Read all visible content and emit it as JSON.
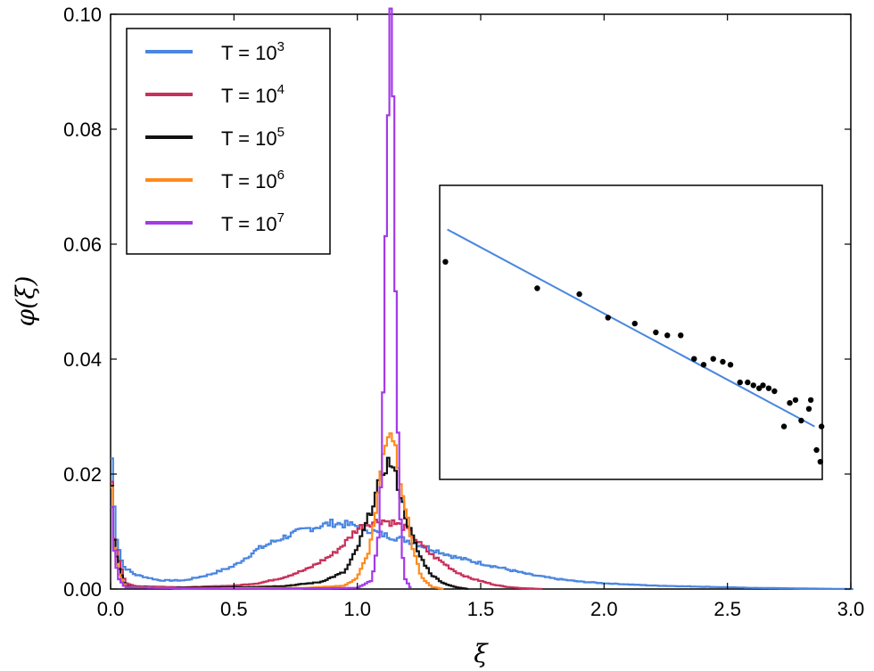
{
  "chart_data": {
    "type": "line",
    "title": "",
    "xlabel": "ξ",
    "ylabel": "φ(ξ)",
    "xlim": [
      0.0,
      3.0
    ],
    "ylim": [
      0.0,
      0.1
    ],
    "xticks": [
      "0.0",
      "0.5",
      "1.0",
      "1.5",
      "2.0",
      "2.5",
      "3.0"
    ],
    "yticks": [
      "0.00",
      "0.02",
      "0.04",
      "0.06",
      "0.08",
      "0.10"
    ],
    "legend_position": "top-left",
    "series": [
      {
        "name": "T = 10^3",
        "label_base": "T = 10",
        "label_exp": "3",
        "color": "#4a86e0",
        "points": [
          [
            0.0,
            0.027
          ],
          [
            0.02,
            0.01
          ],
          [
            0.05,
            0.004
          ],
          [
            0.1,
            0.0025
          ],
          [
            0.2,
            0.0015
          ],
          [
            0.3,
            0.0015
          ],
          [
            0.4,
            0.0025
          ],
          [
            0.5,
            0.004
          ],
          [
            0.6,
            0.007
          ],
          [
            0.7,
            0.009
          ],
          [
            0.8,
            0.0105
          ],
          [
            0.9,
            0.0115
          ],
          [
            1.0,
            0.011
          ],
          [
            1.1,
            0.0095
          ],
          [
            1.2,
            0.0085
          ],
          [
            1.3,
            0.007
          ],
          [
            1.4,
            0.0055
          ],
          [
            1.5,
            0.0045
          ],
          [
            1.6,
            0.0035
          ],
          [
            1.7,
            0.0025
          ],
          [
            1.8,
            0.0018
          ],
          [
            1.9,
            0.0013
          ],
          [
            2.0,
            0.001
          ],
          [
            2.2,
            0.0006
          ],
          [
            2.4,
            0.0004
          ],
          [
            2.6,
            0.0002
          ],
          [
            2.8,
            0.0001
          ],
          [
            3.0,
            0.0
          ]
        ]
      },
      {
        "name": "T = 10^4",
        "label_base": "T = 10",
        "label_exp": "4",
        "color": "#c9305a",
        "points": [
          [
            0.0,
            0.028
          ],
          [
            0.01,
            0.01
          ],
          [
            0.03,
            0.006
          ],
          [
            0.06,
            0.001
          ],
          [
            0.1,
            0.0005
          ],
          [
            0.3,
            0.0003
          ],
          [
            0.5,
            0.0006
          ],
          [
            0.6,
            0.001
          ],
          [
            0.7,
            0.002
          ],
          [
            0.8,
            0.0035
          ],
          [
            0.9,
            0.006
          ],
          [
            0.95,
            0.008
          ],
          [
            1.0,
            0.0105
          ],
          [
            1.05,
            0.0115
          ],
          [
            1.1,
            0.012
          ],
          [
            1.15,
            0.0115
          ],
          [
            1.2,
            0.0105
          ],
          [
            1.25,
            0.008
          ],
          [
            1.3,
            0.006
          ],
          [
            1.35,
            0.0045
          ],
          [
            1.4,
            0.003
          ],
          [
            1.45,
            0.002
          ],
          [
            1.5,
            0.0014
          ],
          [
            1.55,
            0.0008
          ],
          [
            1.6,
            0.0004
          ],
          [
            1.65,
            0.0002
          ],
          [
            1.7,
            0.0001
          ],
          [
            1.75,
            0.0
          ]
        ]
      },
      {
        "name": "T = 10^5",
        "label_base": "T = 10",
        "label_exp": "5",
        "color": "#111111",
        "points": [
          [
            0.0,
            0.028
          ],
          [
            0.01,
            0.01
          ],
          [
            0.03,
            0.004
          ],
          [
            0.06,
            0.0005
          ],
          [
            0.2,
            0.0002
          ],
          [
            0.5,
            0.0003
          ],
          [
            0.7,
            0.0005
          ],
          [
            0.85,
            0.0012
          ],
          [
            0.95,
            0.003
          ],
          [
            1.0,
            0.007
          ],
          [
            1.05,
            0.013
          ],
          [
            1.1,
            0.02
          ],
          [
            1.13,
            0.0225
          ],
          [
            1.16,
            0.019
          ],
          [
            1.2,
            0.012
          ],
          [
            1.25,
            0.006
          ],
          [
            1.3,
            0.0025
          ],
          [
            1.35,
            0.001
          ],
          [
            1.4,
            0.0003
          ],
          [
            1.45,
            0.0
          ]
        ]
      },
      {
        "name": "T = 10^6",
        "label_base": "T = 10",
        "label_exp": "6",
        "color": "#ff8a1c",
        "points": [
          [
            0.0,
            0.028
          ],
          [
            0.01,
            0.009
          ],
          [
            0.03,
            0.003
          ],
          [
            0.06,
            0.0004
          ],
          [
            0.3,
            0.0001
          ],
          [
            0.8,
            0.0002
          ],
          [
            0.95,
            0.0006
          ],
          [
            1.0,
            0.002
          ],
          [
            1.05,
            0.007
          ],
          [
            1.08,
            0.015
          ],
          [
            1.11,
            0.025
          ],
          [
            1.13,
            0.028
          ],
          [
            1.15,
            0.026
          ],
          [
            1.18,
            0.018
          ],
          [
            1.22,
            0.008
          ],
          [
            1.26,
            0.002
          ],
          [
            1.3,
            0.0004
          ],
          [
            1.35,
            0.0
          ]
        ]
      },
      {
        "name": "T = 10^7",
        "label_base": "T = 10",
        "label_exp": "7",
        "color": "#a43ae8",
        "points": [
          [
            0.0,
            0.02
          ],
          [
            0.01,
            0.008
          ],
          [
            0.03,
            0.002
          ],
          [
            0.06,
            0.0003
          ],
          [
            0.5,
            0.0
          ],
          [
            1.0,
            0.0002
          ],
          [
            1.06,
            0.0015
          ],
          [
            1.09,
            0.01
          ],
          [
            1.11,
            0.045
          ],
          [
            1.125,
            0.085
          ],
          [
            1.135,
            0.098
          ],
          [
            1.145,
            0.09
          ],
          [
            1.155,
            0.055
          ],
          [
            1.17,
            0.015
          ],
          [
            1.19,
            0.002
          ],
          [
            1.22,
            0.0
          ]
        ]
      }
    ],
    "inset": {
      "type": "scatter",
      "xlim": [
        0,
        1
      ],
      "ylim": [
        0,
        1
      ],
      "fit_line": {
        "color": "#4a86e0",
        "points": [
          [
            0.02,
            0.85
          ],
          [
            0.98,
            0.18
          ]
        ]
      },
      "points": [
        [
          0.015,
          0.74
        ],
        [
          0.255,
          0.65
        ],
        [
          0.365,
          0.63
        ],
        [
          0.44,
          0.55
        ],
        [
          0.51,
          0.53
        ],
        [
          0.565,
          0.5
        ],
        [
          0.595,
          0.49
        ],
        [
          0.63,
          0.49
        ],
        [
          0.665,
          0.41
        ],
        [
          0.69,
          0.39
        ],
        [
          0.715,
          0.41
        ],
        [
          0.74,
          0.4
        ],
        [
          0.76,
          0.39
        ],
        [
          0.785,
          0.33
        ],
        [
          0.805,
          0.33
        ],
        [
          0.82,
          0.32
        ],
        [
          0.835,
          0.31
        ],
        [
          0.845,
          0.32
        ],
        [
          0.86,
          0.31
        ],
        [
          0.875,
          0.3
        ],
        [
          0.9,
          0.18
        ],
        [
          0.915,
          0.26
        ],
        [
          0.93,
          0.27
        ],
        [
          0.945,
          0.2
        ],
        [
          0.965,
          0.24
        ],
        [
          0.97,
          0.27
        ],
        [
          0.985,
          0.1
        ],
        [
          0.995,
          0.06
        ],
        [
          0.998,
          0.18
        ]
      ]
    }
  }
}
